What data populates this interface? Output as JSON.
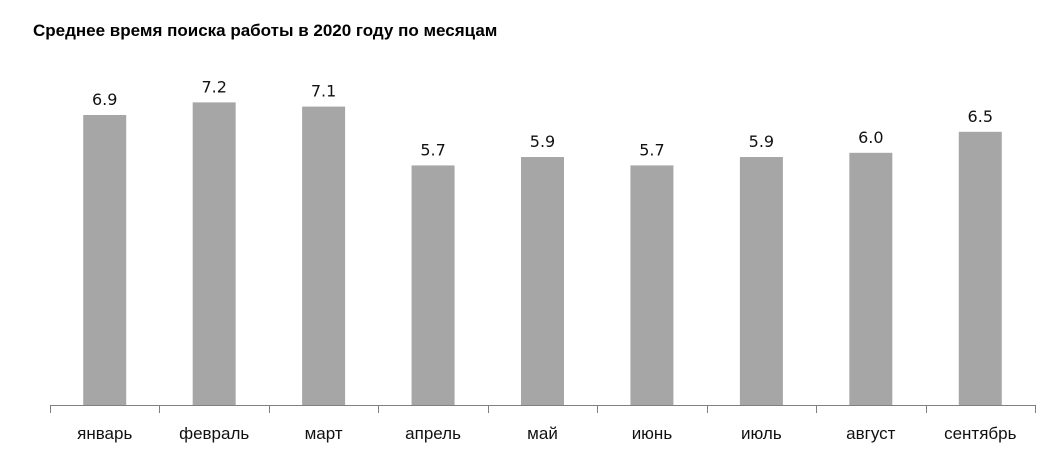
{
  "chart_data": {
    "type": "bar",
    "title": "Среднее время поиска работы в 2020 году по месяцам",
    "categories": [
      "январь",
      "февраль",
      "март",
      "апрель",
      "май",
      "июнь",
      "июль",
      "август",
      "сентябрь"
    ],
    "values": [
      6.9,
      7.2,
      7.1,
      5.7,
      5.9,
      5.7,
      5.9,
      6.0,
      6.5
    ],
    "data_labels": [
      "6.9",
      "7.2",
      "7.1",
      "5.7",
      "5.9",
      "5.7",
      "5.9",
      "6.0",
      "6.5"
    ],
    "xlabel": "",
    "ylabel": "",
    "ylim": [
      0,
      7.5
    ],
    "grid": false,
    "legend": "none",
    "bar_color": "#a6a6a6",
    "axis_color": "#808080"
  }
}
